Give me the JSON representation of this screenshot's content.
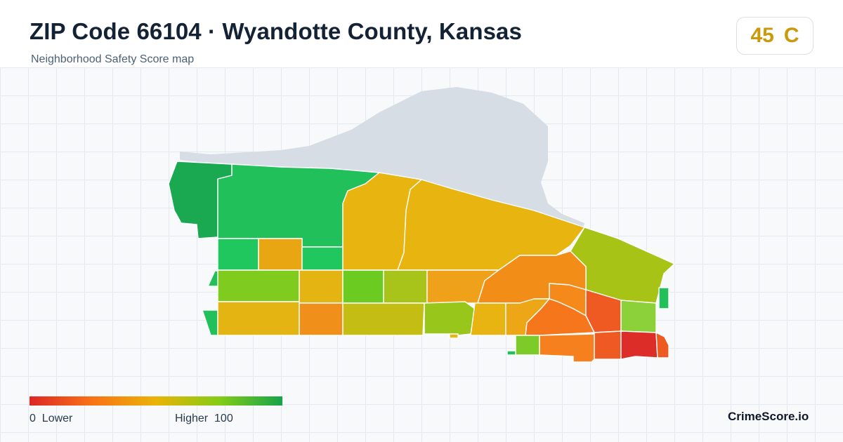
{
  "header": {
    "title": "ZIP Code 66104 · Wyandotte County, Kansas",
    "subtitle": "Neighborhood Safety Score map"
  },
  "score_badge": {
    "score": "45",
    "grade": "C",
    "color": "#ca9a0a"
  },
  "map": {
    "river_color": "#d6dde5",
    "score_scale": [
      "#dc2626",
      "#f97316",
      "#eab308",
      "#84cc16",
      "#16a34a"
    ]
  },
  "legend": {
    "low_value": "0",
    "low_label": "Lower",
    "high_label": "Higher",
    "high_value": "100"
  },
  "brand": "CrimeScore.io"
}
